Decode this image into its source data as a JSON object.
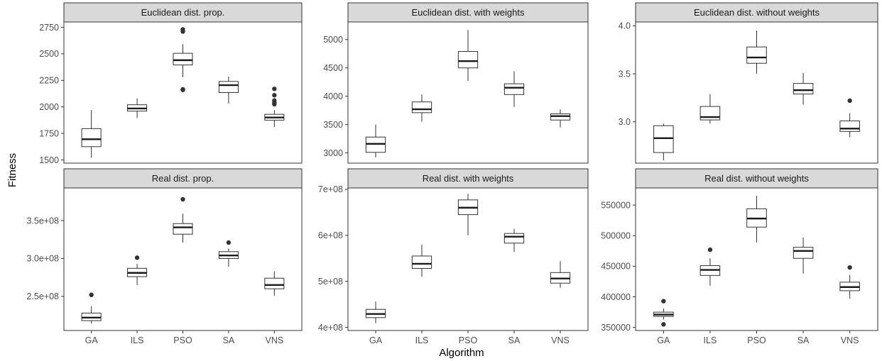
{
  "axes": {
    "xlabel": "Algorithm",
    "ylabel": "Fitness"
  },
  "chart_data": [
    {
      "type": "box",
      "title": "Euclidean dist. prop.",
      "categories": [
        "GA",
        "ILS",
        "PSO",
        "SA",
        "VNS"
      ],
      "ylim": [
        1470,
        2800
      ],
      "yticks": [
        1500,
        1750,
        2000,
        2250,
        2500,
        2750
      ],
      "ytick_labels": [
        "1500",
        "1750",
        "2000",
        "2250",
        "2500",
        "2750"
      ],
      "boxes": [
        {
          "whisker_low": 1520,
          "q1": 1625,
          "median": 1695,
          "q3": 1795,
          "whisker_high": 1970,
          "outliers": []
        },
        {
          "whisker_low": 1895,
          "q1": 1960,
          "median": 1985,
          "q3": 2020,
          "whisker_high": 2080,
          "outliers": []
        },
        {
          "whisker_low": 2280,
          "q1": 2395,
          "median": 2440,
          "q3": 2505,
          "whisker_high": 2590,
          "outliers": [
            2160,
            2165,
            2710,
            2730
          ]
        },
        {
          "whisker_low": 2030,
          "q1": 2135,
          "median": 2205,
          "q3": 2240,
          "whisker_high": 2285,
          "outliers": []
        },
        {
          "whisker_low": 1810,
          "q1": 1875,
          "median": 1900,
          "q3": 1930,
          "whisker_high": 1970,
          "outliers": [
            2025,
            2040,
            2060,
            2110,
            2170
          ]
        }
      ]
    },
    {
      "type": "box",
      "title": "Euclidean dist. with weights",
      "categories": [
        "GA",
        "ILS",
        "PSO",
        "SA",
        "VNS"
      ],
      "ylim": [
        2820,
        5310
      ],
      "yticks": [
        3000,
        3500,
        4000,
        4500,
        5000
      ],
      "ytick_labels": [
        "3000",
        "3500",
        "4000",
        "4500",
        "5000"
      ],
      "boxes": [
        {
          "whisker_low": 2920,
          "q1": 3010,
          "median": 3160,
          "q3": 3280,
          "whisker_high": 3500,
          "outliers": []
        },
        {
          "whisker_low": 3550,
          "q1": 3710,
          "median": 3770,
          "q3": 3900,
          "whisker_high": 4030,
          "outliers": []
        },
        {
          "whisker_low": 4270,
          "q1": 4500,
          "median": 4620,
          "q3": 4790,
          "whisker_high": 5170,
          "outliers": []
        },
        {
          "whisker_low": 3810,
          "q1": 4030,
          "median": 4150,
          "q3": 4220,
          "whisker_high": 4440,
          "outliers": []
        },
        {
          "whisker_low": 3450,
          "q1": 3580,
          "median": 3650,
          "q3": 3690,
          "whisker_high": 3770,
          "outliers": []
        }
      ]
    },
    {
      "type": "box",
      "title": "Euclidean dist. without weights",
      "categories": [
        "GA",
        "ILS",
        "PSO",
        "SA",
        "VNS"
      ],
      "ylim": [
        2.57,
        4.04
      ],
      "yticks": [
        3.0,
        3.5,
        4.0
      ],
      "ytick_labels": [
        "3.0",
        "3.5",
        "4.0"
      ],
      "boxes": [
        {
          "whisker_low": 2.6,
          "q1": 2.68,
          "median": 2.83,
          "q3": 2.96,
          "whisker_high": 2.98,
          "outliers": []
        },
        {
          "whisker_low": 2.98,
          "q1": 3.02,
          "median": 3.05,
          "q3": 3.16,
          "whisker_high": 3.29,
          "outliers": []
        },
        {
          "whisker_low": 3.5,
          "q1": 3.61,
          "median": 3.67,
          "q3": 3.78,
          "whisker_high": 3.95,
          "outliers": []
        },
        {
          "whisker_low": 3.18,
          "q1": 3.29,
          "median": 3.33,
          "q3": 3.4,
          "whisker_high": 3.51,
          "outliers": []
        },
        {
          "whisker_low": 2.84,
          "q1": 2.9,
          "median": 2.93,
          "q3": 3.01,
          "whisker_high": 3.09,
          "outliers": [
            3.22
          ]
        }
      ]
    },
    {
      "type": "box",
      "title": "Real dist. prop.",
      "categories": [
        "GA",
        "ILS",
        "PSO",
        "SA",
        "VNS"
      ],
      "ylim": [
        205000000,
        393000000
      ],
      "yticks": [
        250000000,
        300000000,
        350000000
      ],
      "ytick_labels": [
        "2.5e+08",
        "3.0e+08",
        "3.5e+08"
      ],
      "boxes": [
        {
          "whisker_low": 214000000,
          "q1": 218000000,
          "median": 222000000,
          "q3": 228000000,
          "whisker_high": 237000000,
          "outliers": [
            252000000
          ]
        },
        {
          "whisker_low": 265000000,
          "q1": 276000000,
          "median": 281000000,
          "q3": 287000000,
          "whisker_high": 293000000,
          "outliers": [
            301000000
          ]
        },
        {
          "whisker_low": 321000000,
          "q1": 332000000,
          "median": 341000000,
          "q3": 346000000,
          "whisker_high": 359000000,
          "outliers": [
            378000000
          ]
        },
        {
          "whisker_low": 289000000,
          "q1": 300000000,
          "median": 304000000,
          "q3": 309000000,
          "whisker_high": 313000000,
          "outliers": [
            321000000
          ]
        },
        {
          "whisker_low": 251000000,
          "q1": 260000000,
          "median": 265000000,
          "q3": 274000000,
          "whisker_high": 283000000,
          "outliers": []
        }
      ]
    },
    {
      "type": "box",
      "title": "Real dist. with weights",
      "categories": [
        "GA",
        "ILS",
        "PSO",
        "SA",
        "VNS"
      ],
      "ylim": [
        393000000,
        703000000
      ],
      "yticks": [
        400000000,
        500000000,
        600000000,
        700000000
      ],
      "ytick_labels": [
        "4e+08",
        "5e+08",
        "6e+08",
        "7e+08"
      ],
      "boxes": [
        {
          "whisker_low": 409000000,
          "q1": 421000000,
          "median": 429000000,
          "q3": 439000000,
          "whisker_high": 456000000,
          "outliers": []
        },
        {
          "whisker_low": 510000000,
          "q1": 528000000,
          "median": 538000000,
          "q3": 555000000,
          "whisker_high": 580000000,
          "outliers": []
        },
        {
          "whisker_low": 600000000,
          "q1": 645000000,
          "median": 660000000,
          "q3": 677000000,
          "whisker_high": 690000000,
          "outliers": []
        },
        {
          "whisker_low": 564000000,
          "q1": 583000000,
          "median": 597000000,
          "q3": 604000000,
          "whisker_high": 614000000,
          "outliers": []
        },
        {
          "whisker_low": 486000000,
          "q1": 496000000,
          "median": 506000000,
          "q3": 519000000,
          "whisker_high": 544000000,
          "outliers": []
        }
      ]
    },
    {
      "type": "box",
      "title": "Real dist. without weights",
      "categories": [
        "GA",
        "ILS",
        "PSO",
        "SA",
        "VNS"
      ],
      "ylim": [
        345000,
        578000
      ],
      "yticks": [
        350000,
        400000,
        450000,
        500000,
        550000
      ],
      "ytick_labels": [
        "350000",
        "400000",
        "450000",
        "500000",
        "550000"
      ],
      "boxes": [
        {
          "whisker_low": 363000,
          "q1": 368000,
          "median": 371000,
          "q3": 375000,
          "whisker_high": 381000,
          "outliers": [
            355000,
            393000
          ]
        },
        {
          "whisker_low": 418000,
          "q1": 435000,
          "median": 444000,
          "q3": 451000,
          "whisker_high": 463000,
          "outliers": [
            477000
          ]
        },
        {
          "whisker_low": 489000,
          "q1": 514000,
          "median": 528000,
          "q3": 544000,
          "whisker_high": 565000,
          "outliers": []
        },
        {
          "whisker_low": 438000,
          "q1": 463000,
          "median": 475000,
          "q3": 481000,
          "whisker_high": 497000,
          "outliers": []
        },
        {
          "whisker_low": 397000,
          "q1": 410000,
          "median": 416000,
          "q3": 424000,
          "whisker_high": 436000,
          "outliers": [
            448000
          ]
        }
      ]
    }
  ]
}
